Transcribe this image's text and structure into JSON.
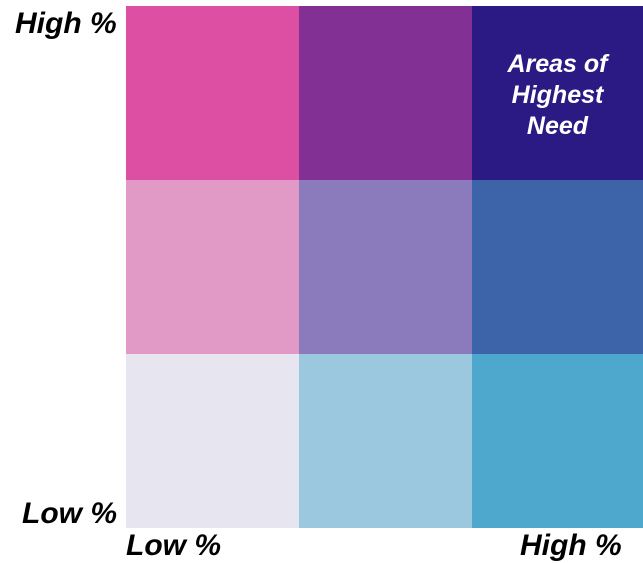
{
  "axes": {
    "y_high": "High %",
    "y_low": "Low %",
    "x_low": "Low %",
    "x_high": "High %"
  },
  "grid": {
    "rows": [
      {
        "cells": [
          {
            "color": "#DC4FA3",
            "label": ""
          },
          {
            "color": "#823094",
            "label": ""
          },
          {
            "color": "#2B1984",
            "label": "Areas of\nHighest\nNeed"
          }
        ]
      },
      {
        "cells": [
          {
            "color": "#E199C6",
            "label": ""
          },
          {
            "color": "#8B7BBC",
            "label": ""
          },
          {
            "color": "#3D63A8",
            "label": ""
          }
        ]
      },
      {
        "cells": [
          {
            "color": "#E6E5F0",
            "label": ""
          },
          {
            "color": "#9BC7DF",
            "label": ""
          },
          {
            "color": "#4EA8CE",
            "label": ""
          }
        ]
      }
    ]
  }
}
